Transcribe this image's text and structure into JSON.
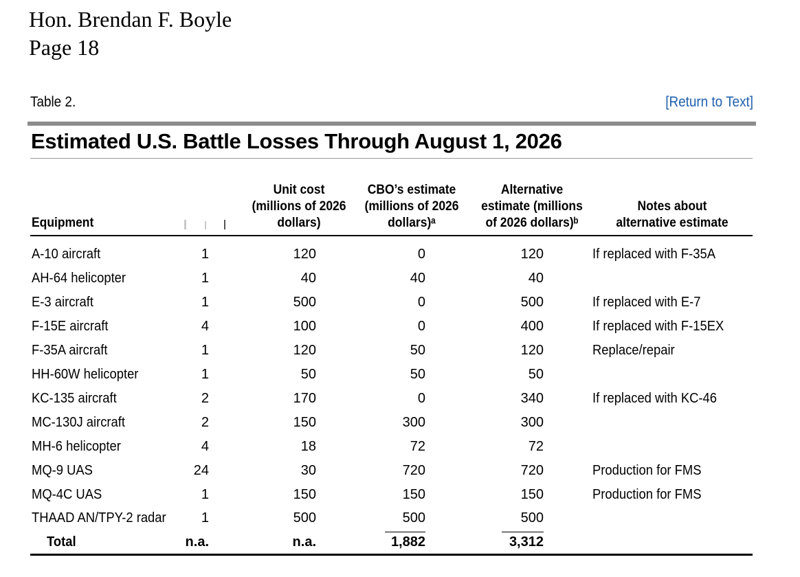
{
  "letterhead": {
    "addressee": "Hon. Brendan F. Boyle",
    "page": "Page 18"
  },
  "table_label": "Table 2.",
  "return_link": "[Return to Text]",
  "title": "Estimated U.S. Battle Losses Through August 1, 2026",
  "columns": {
    "equipment": "Equipment",
    "quantity": "",
    "unit_cost": "Unit cost\n(millions of 2026\ndollars)",
    "cbo_estimate": "CBO’s estimate\n(millions of 2026\ndollars)ᵃ",
    "alt_estimate": "Alternative\nestimate (millions\nof 2026 dollars)ᵇ",
    "notes": "Notes about\nalternative estimate"
  },
  "rows": [
    {
      "equipment": "A-10 aircraft",
      "quantity": "1",
      "unit_cost": "120",
      "cbo": "0",
      "alt": "120",
      "note": "If replaced with F-35A"
    },
    {
      "equipment": "AH-64 helicopter",
      "quantity": "1",
      "unit_cost": "40",
      "cbo": "40",
      "alt": "40",
      "note": ""
    },
    {
      "equipment": "E-3 aircraft",
      "quantity": "1",
      "unit_cost": "500",
      "cbo": "0",
      "alt": "500",
      "note": "If replaced with E-7"
    },
    {
      "equipment": "F-15E aircraft",
      "quantity": "4",
      "unit_cost": "100",
      "cbo": "0",
      "alt": "400",
      "note": "If replaced with F-15EX"
    },
    {
      "equipment": "F-35A aircraft",
      "quantity": "1",
      "unit_cost": "120",
      "cbo": "50",
      "alt": "120",
      "note": "Replace/repair"
    },
    {
      "equipment": "HH-60W helicopter",
      "quantity": "1",
      "unit_cost": "50",
      "cbo": "50",
      "alt": "50",
      "note": ""
    },
    {
      "equipment": "KC-135 aircraft",
      "quantity": "2",
      "unit_cost": "170",
      "cbo": "0",
      "alt": "340",
      "note": "If replaced with KC-46"
    },
    {
      "equipment": "MC-130J aircraft",
      "quantity": "2",
      "unit_cost": "150",
      "cbo": "300",
      "alt": "300",
      "note": ""
    },
    {
      "equipment": "MH-6 helicopter",
      "quantity": "4",
      "unit_cost": "18",
      "cbo": "72",
      "alt": "72",
      "note": ""
    },
    {
      "equipment": "MQ-9 UAS",
      "quantity": "24",
      "unit_cost": "30",
      "cbo": "720",
      "alt": "720",
      "note": "Production for FMS"
    },
    {
      "equipment": "MQ-4C UAS",
      "quantity": "1",
      "unit_cost": "150",
      "cbo": "150",
      "alt": "150",
      "note": "Production for FMS"
    },
    {
      "equipment": "THAAD AN/TPY-2 radar",
      "quantity": "1",
      "unit_cost": "500",
      "cbo": "500",
      "alt": "500",
      "note": ""
    }
  ],
  "total": {
    "label": "Total",
    "quantity": "n.a.",
    "unit_cost": "n.a.",
    "cbo": "1,882",
    "alt": "3,312"
  }
}
